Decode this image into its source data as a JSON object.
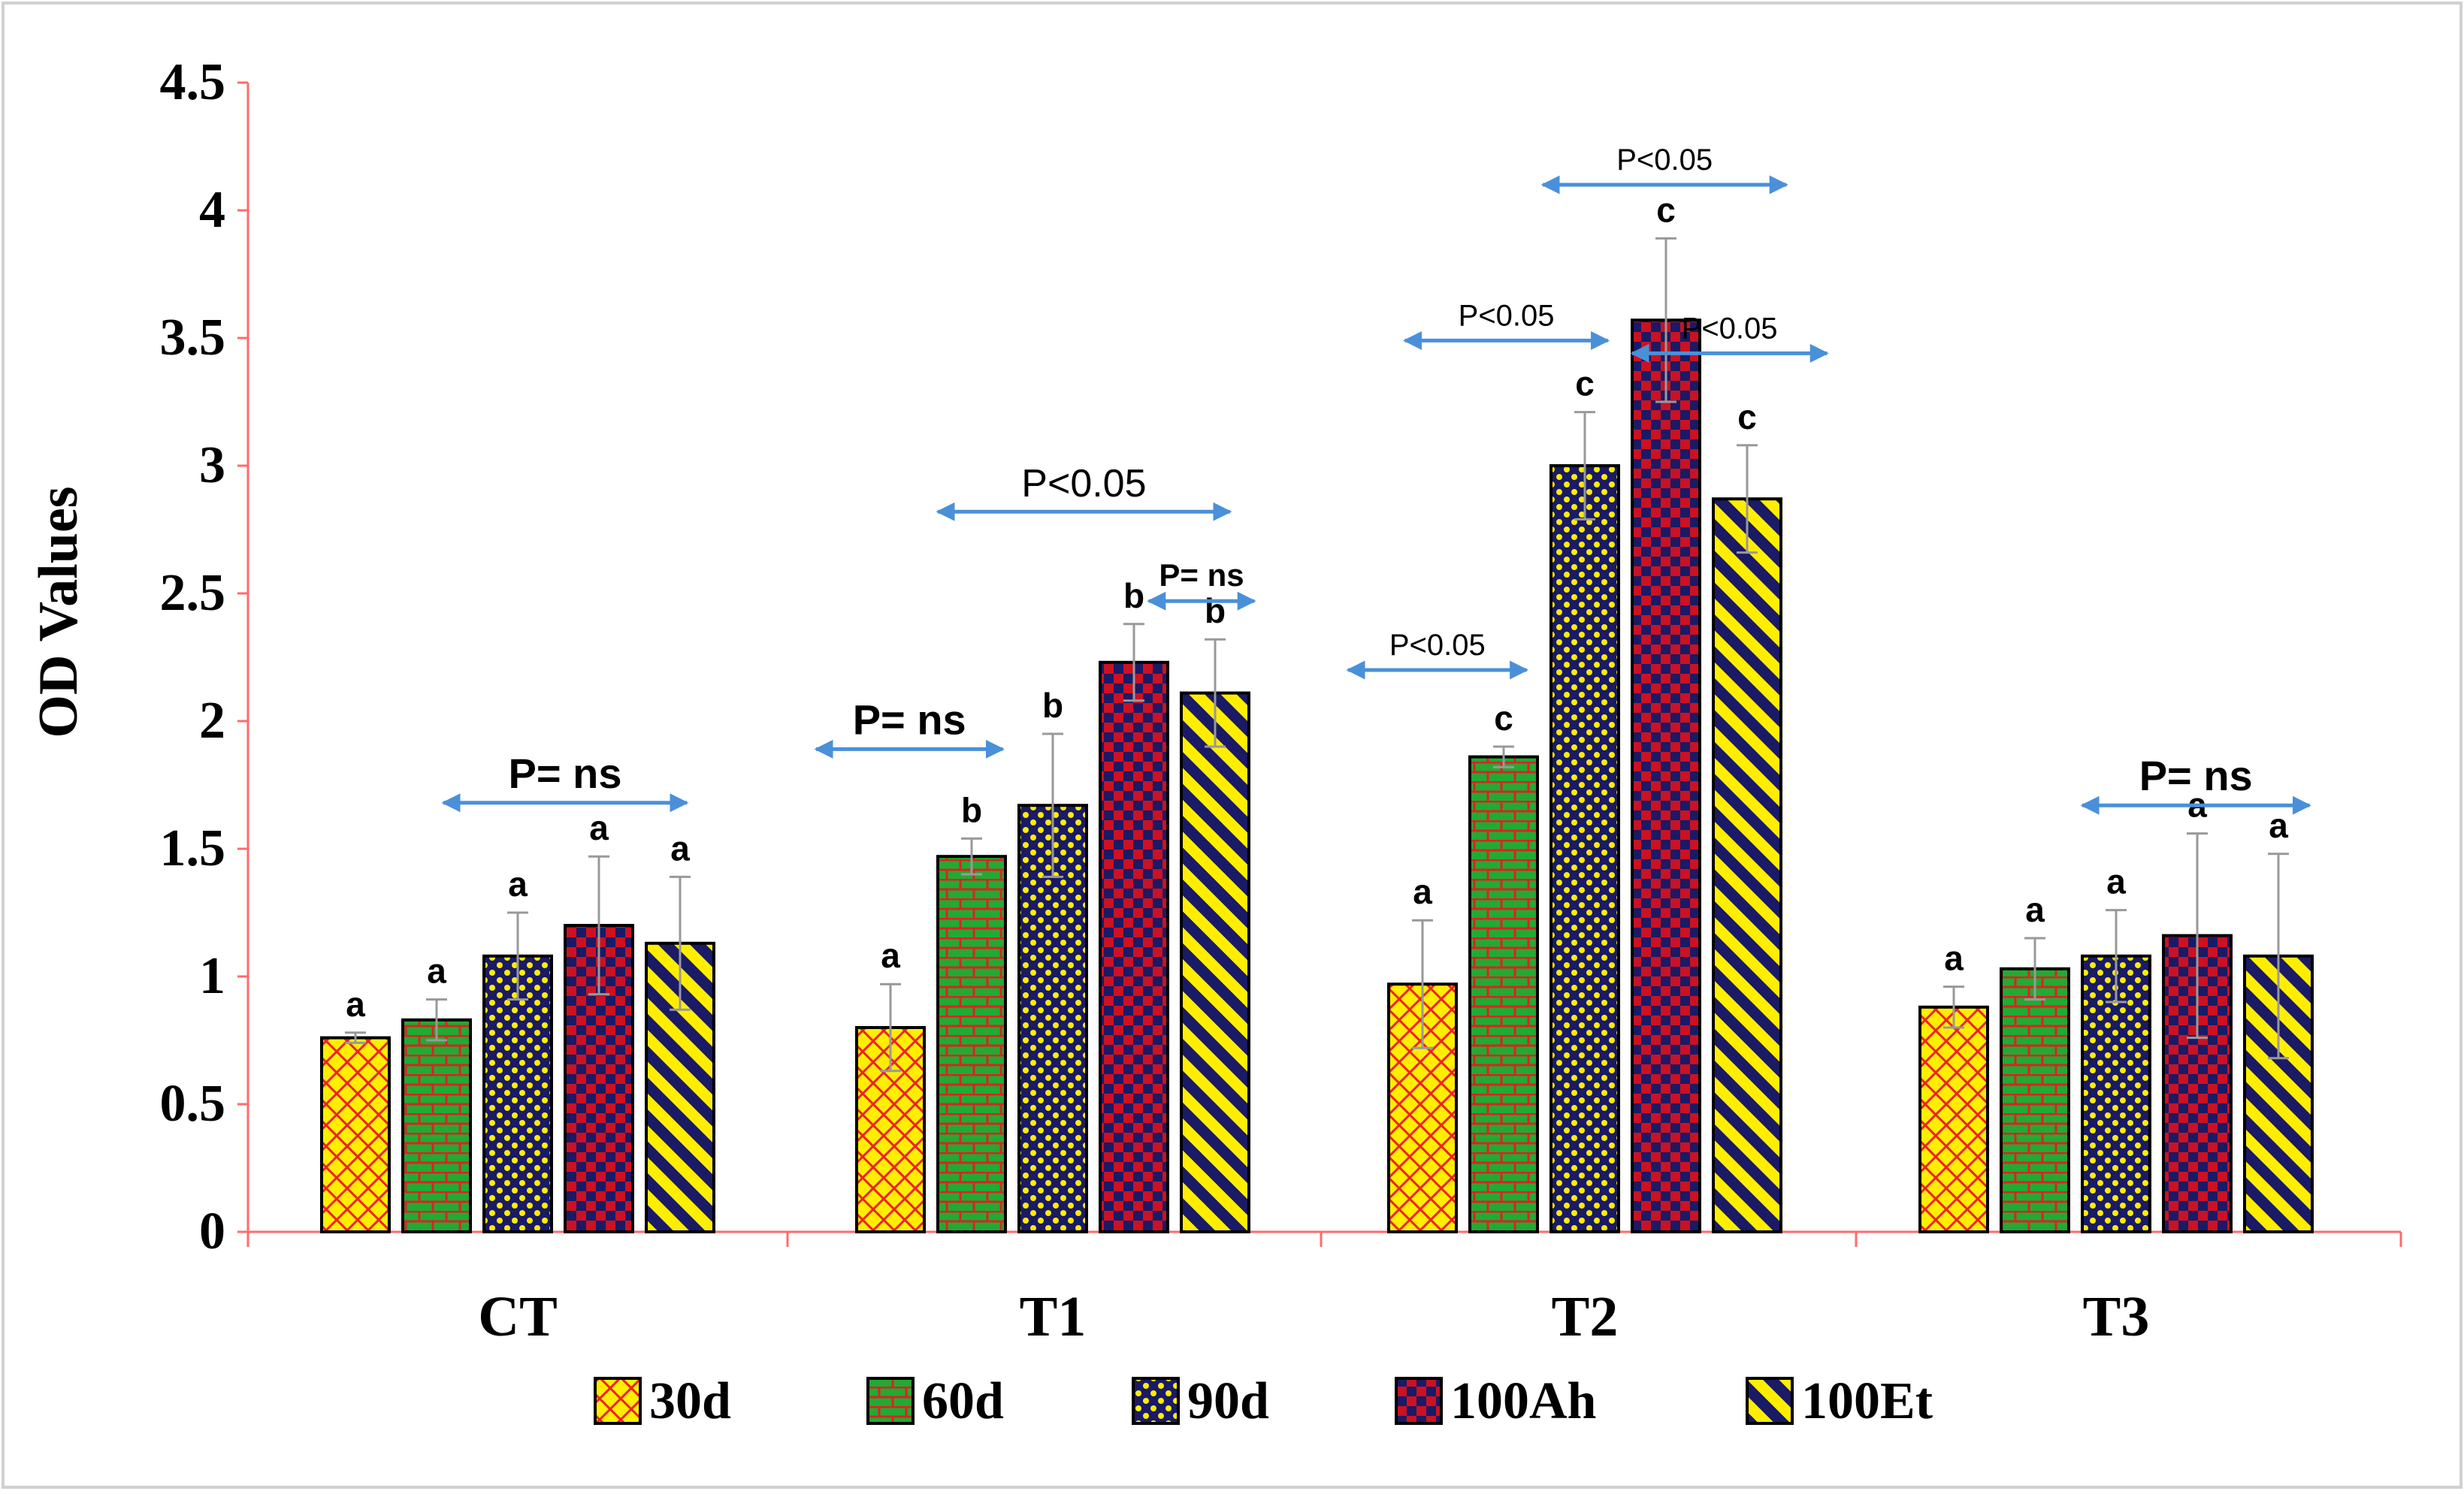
{
  "chart_data": {
    "type": "bar",
    "title": "",
    "xlabel": "",
    "ylabel": "OD Values",
    "ylim": [
      0,
      4.5
    ],
    "yticks": [
      0,
      0.5,
      1,
      1.5,
      2,
      2.5,
      3,
      3.5,
      4,
      4.5
    ],
    "ytick_labels": [
      "0",
      "0.5",
      "1",
      "1.5",
      "2",
      "2.5",
      "3",
      "3.5",
      "4",
      "4.5"
    ],
    "categories": [
      "CT",
      "T1",
      "T2",
      "T3"
    ],
    "series": [
      {
        "name": "30d",
        "pattern": "lattice",
        "color": "#ffee00",
        "pattern_color": "#ee2222",
        "values": [
          0.76,
          0.8,
          0.97,
          0.88
        ],
        "errors": [
          0.02,
          0.17,
          0.25,
          0.08
        ],
        "labels": [
          "a",
          "a",
          "a",
          "a"
        ]
      },
      {
        "name": "60d",
        "pattern": "brick",
        "color": "#22aa33",
        "pattern_color": "#dd2222",
        "values": [
          0.83,
          1.47,
          1.86,
          1.03
        ],
        "errors": [
          0.08,
          0.07,
          0.04,
          0.12
        ],
        "labels": [
          "a",
          "b",
          "c",
          "a"
        ]
      },
      {
        "name": "90d",
        "pattern": "dots",
        "color": "#ffee00",
        "pattern_color": "#1a1a66",
        "values": [
          1.08,
          1.67,
          3.0,
          1.08
        ],
        "errors": [
          0.17,
          0.28,
          0.21,
          0.18
        ],
        "labels": [
          "a",
          "b",
          "c",
          "a"
        ]
      },
      {
        "name": "100Ah",
        "pattern": "checker",
        "color": "#cc1122",
        "pattern_color": "#1a1a66",
        "values": [
          1.2,
          2.23,
          3.57,
          1.16
        ],
        "errors": [
          0.27,
          0.15,
          0.32,
          0.4
        ],
        "labels": [
          "a",
          "b",
          "c",
          "a"
        ]
      },
      {
        "name": "100Et",
        "pattern": "diagonal",
        "color": "#ffee00",
        "pattern_color": "#1a1a66",
        "values": [
          1.13,
          2.11,
          2.87,
          1.08
        ],
        "errors": [
          0.26,
          0.21,
          0.21,
          0.4
        ],
        "labels": [
          "a",
          "b",
          "c",
          "a"
        ]
      }
    ],
    "annotations": [
      {
        "text": "P= ns",
        "group": 0,
        "from": 1.5,
        "to": 4.5,
        "y": 1.68,
        "style": "large"
      },
      {
        "text": "P= ns",
        "group": 1,
        "from": -0.5,
        "to": 1.8,
        "y": 1.89,
        "style": "large"
      },
      {
        "text": "P<0.05",
        "group": 1,
        "from": 1.0,
        "to": 4.6,
        "y": 2.82,
        "style": "medium"
      },
      {
        "text": "P= ns",
        "group": 1,
        "from": 3.6,
        "to": 4.9,
        "y": 2.47,
        "style": "small"
      },
      {
        "text": "P<0.05",
        "group": 2,
        "from": -0.5,
        "to": 1.7,
        "y": 2.2,
        "style": "thin"
      },
      {
        "text": "P<0.05",
        "group": 2,
        "from": 0.2,
        "to": 2.7,
        "y": 3.49,
        "style": "thin"
      },
      {
        "text": "P<0.05",
        "group": 2,
        "from": 1.9,
        "to": 4.9,
        "y": 4.1,
        "style": "thin"
      },
      {
        "text": "P<0.05",
        "group": 2,
        "from": 3.0,
        "to": 5.4,
        "y": 3.44,
        "style": "thin"
      },
      {
        "text": "P= ns",
        "group": 3,
        "from": 2.0,
        "to": 4.8,
        "y": 1.67,
        "style": "large"
      }
    ],
    "legend_position": "bottom",
    "grid": false
  }
}
